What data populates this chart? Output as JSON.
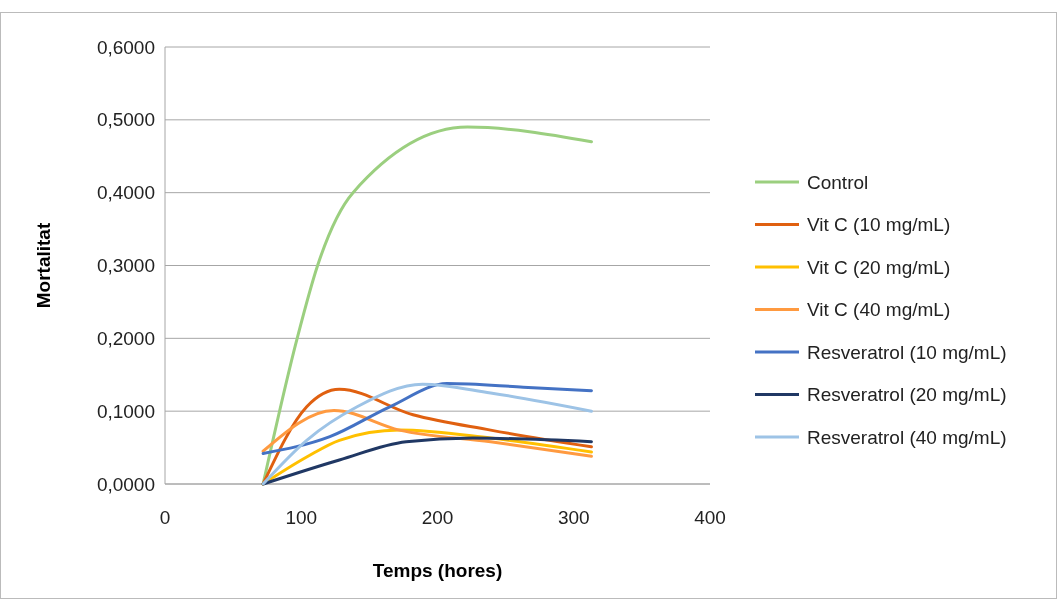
{
  "chart_data": {
    "type": "line",
    "xlabel": "Temps (hores)",
    "ylabel": "Mortalitat",
    "xlim": [
      0,
      400
    ],
    "xticks": [
      0,
      100,
      200,
      300,
      400
    ],
    "ylim": [
      0,
      0.6
    ],
    "yticks": [
      {
        "value": 0,
        "label": "0,0000"
      },
      {
        "value": 0.1,
        "label": "0,1000"
      },
      {
        "value": 0.2,
        "label": "0,2000"
      },
      {
        "value": 0.3,
        "label": "0,3000"
      },
      {
        "value": 0.4,
        "label": "0,4000"
      },
      {
        "value": 0.5,
        "label": "0,5000"
      },
      {
        "value": 0.6,
        "label": "0,6000"
      }
    ],
    "grid": "y",
    "legend": "right",
    "marker": "none",
    "line_style": "solid",
    "series": [
      {
        "name": "Control",
        "color": "#9bcf7f",
        "x": [
          72,
          97,
          112,
          138,
          222,
          313
        ],
        "values": [
          0,
          0.2,
          0.3,
          0.4,
          0.49,
          0.47
        ]
      },
      {
        "name": "Vit C (10 mg/mL)",
        "color": "#e06010",
        "x": [
          72,
          104,
          128,
          182,
          239,
          313
        ],
        "values": [
          0,
          0.106,
          0.13,
          0.095,
          0.074,
          0.051
        ]
      },
      {
        "name": "Vit C (20 mg/mL)",
        "color": "#ffc000",
        "x": [
          72,
          104,
          128,
          172,
          239,
          313
        ],
        "values": [
          0,
          0.037,
          0.06,
          0.074,
          0.063,
          0.044
        ]
      },
      {
        "name": "Vit C (40 mg/mL)",
        "color": "#ff9a40",
        "x": [
          72,
          124,
          172,
          239,
          313
        ],
        "values": [
          0.045,
          0.101,
          0.074,
          0.058,
          0.038
        ]
      },
      {
        "name": "Resveratrol (10 mg/mL)",
        "color": "#4472c4",
        "x": [
          72,
          121,
          165,
          207,
          263,
          313
        ],
        "values": [
          0.042,
          0.065,
          0.106,
          0.138,
          0.133,
          0.128
        ]
      },
      {
        "name": "Resveratrol (20 mg/mL)",
        "color": "#203864",
        "x": [
          72,
          128,
          177,
          226,
          313
        ],
        "values": [
          0,
          0.033,
          0.058,
          0.063,
          0.058
        ]
      },
      {
        "name": "Resveratrol (40 mg/mL)",
        "color": "#9dc3e6",
        "x": [
          72,
          104,
          141,
          189,
          239,
          313
        ],
        "values": [
          0,
          0.06,
          0.106,
          0.137,
          0.125,
          0.1
        ]
      }
    ]
  }
}
